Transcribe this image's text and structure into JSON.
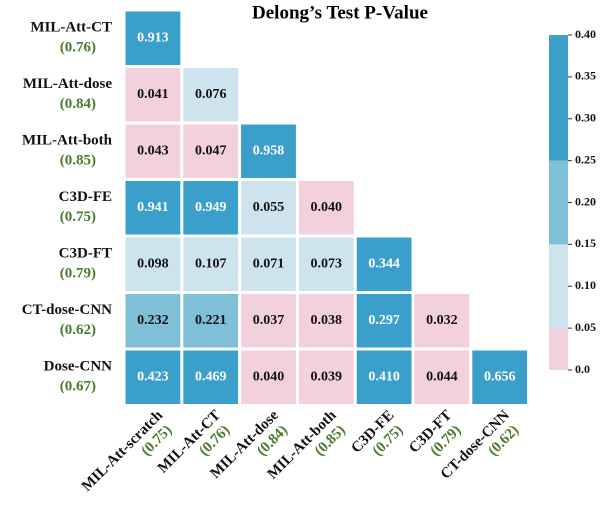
{
  "chart_data": {
    "type": "heatmap",
    "title": "Delong’s Test  P-Value",
    "rows": [
      "MIL-Att-CT",
      "MIL-Att-dose",
      "MIL-Att-both",
      "C3D-FE",
      "C3D-FT",
      "CT-dose-CNN",
      "Dose-CNN"
    ],
    "row_auc": [
      "(0.76)",
      "(0.84)",
      "(0.85)",
      "(0.75)",
      "(0.79)",
      "(0.62)",
      "(0.67)"
    ],
    "columns": [
      "MIL-Att-scratch",
      "MIL-Att-CT",
      "MIL-Att-dose",
      "MIL-Att-both",
      "C3D-FE",
      "C3D-FT",
      "CT-dose-CNN"
    ],
    "column_auc": [
      "(0.75)",
      "(0.76)",
      "(0.84)",
      "(0.85)",
      "(0.75)",
      "(0.79)",
      "(0.62)"
    ],
    "values": [
      [
        0.913,
        null,
        null,
        null,
        null,
        null,
        null
      ],
      [
        0.041,
        0.076,
        null,
        null,
        null,
        null,
        null
      ],
      [
        0.043,
        0.047,
        0.958,
        null,
        null,
        null,
        null
      ],
      [
        0.941,
        0.949,
        0.055,
        0.04,
        null,
        null,
        null
      ],
      [
        0.098,
        0.107,
        0.071,
        0.073,
        0.344,
        null,
        null
      ],
      [
        0.232,
        0.221,
        0.037,
        0.038,
        0.297,
        0.032,
        null
      ],
      [
        0.423,
        0.469,
        0.04,
        0.039,
        0.41,
        0.044,
        0.656
      ]
    ],
    "value_labels": [
      [
        "0.913",
        null,
        null,
        null,
        null,
        null,
        null
      ],
      [
        "0.041",
        "0.076",
        null,
        null,
        null,
        null,
        null
      ],
      [
        "0.043",
        "0.047",
        "0.958",
        null,
        null,
        null,
        null
      ],
      [
        "0.941",
        "0.949",
        "0.055",
        "0.040",
        null,
        null,
        null
      ],
      [
        "0.098",
        "0.107",
        "0.071",
        "0.073",
        "0.344",
        null,
        null
      ],
      [
        "0.232",
        "0.221",
        "0.037",
        "0.038",
        "0.297",
        "0.032",
        null
      ],
      [
        "0.423",
        "0.469",
        "0.040",
        "0.039",
        "0.410",
        "0.044",
        "0.656"
      ]
    ],
    "color_bounds": [
      0,
      0.05,
      0.15,
      0.25,
      0.4
    ],
    "colors": [
      "#f2d0dc",
      "#cde4ee",
      "#7fbfd8",
      "#3a9fcb"
    ],
    "clim": [
      0,
      0.4
    ],
    "cticks": [
      {
        "value": 0,
        "label": "0.0"
      },
      0.05,
      {
        "value": 0.1,
        "label": "0.10"
      },
      0.15,
      {
        "value": 0.2,
        "label": "0.20"
      },
      0.25,
      {
        "value": 0.3,
        "label": "0.30"
      },
      0.35,
      {
        "value": 0.4,
        "label": "0.40"
      }
    ]
  }
}
